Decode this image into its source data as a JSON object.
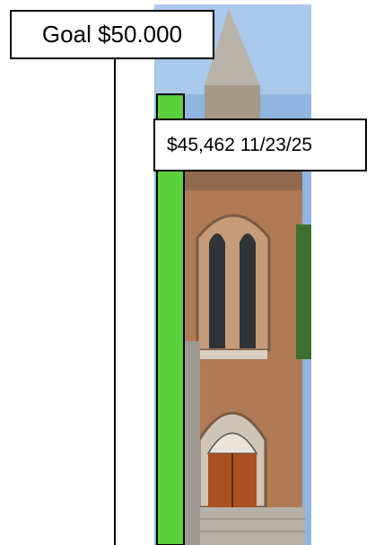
{
  "chart_data": {
    "type": "bar",
    "goal": {
      "value": 50000,
      "label": "Goal $50.000"
    },
    "values": [
      45462
    ],
    "value_labels": [
      "$45,462"
    ],
    "date": "11/23/25",
    "ylim": [
      0,
      50000
    ],
    "color": "#5ad13c"
  }
}
